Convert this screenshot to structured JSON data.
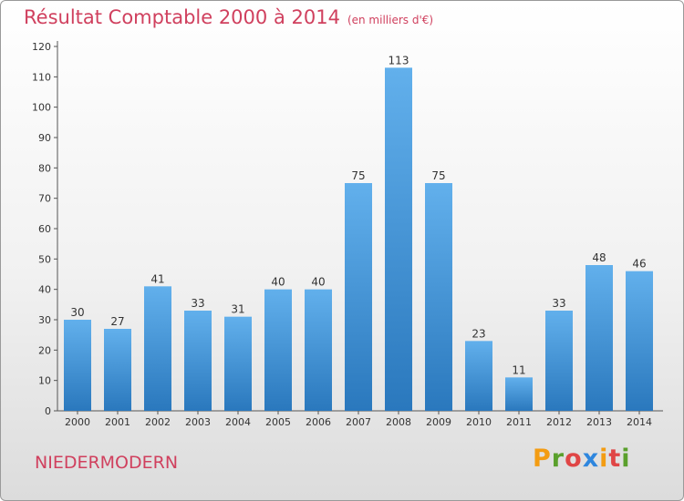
{
  "title": "Résultat Comptable 2000 à 2014",
  "unit": "(en milliers d'€)",
  "commune": "NIEDERMODERN",
  "logo": {
    "letters": [
      "P",
      "r",
      "o",
      "x",
      "i",
      "t",
      "i"
    ],
    "colors": [
      "#f39c12",
      "#5aa02c",
      "#e04646",
      "#2e86de",
      "#f39c12",
      "#e04646",
      "#5aa02c"
    ]
  },
  "colors": {
    "bar_top": "#62b0ec",
    "bar_bottom": "#2a78bd",
    "title": "#d0405e"
  },
  "chart_data": {
    "type": "bar",
    "categories": [
      "2000",
      "2001",
      "2002",
      "2003",
      "2004",
      "2005",
      "2006",
      "2007",
      "2008",
      "2009",
      "2010",
      "2011",
      "2012",
      "2013",
      "2014"
    ],
    "values": [
      30,
      27,
      41,
      33,
      31,
      40,
      40,
      75,
      113,
      75,
      23,
      11,
      33,
      48,
      46
    ],
    "title": "Résultat Comptable 2000 à 2014",
    "xlabel": "",
    "ylabel": "",
    "ylim": [
      0,
      120
    ],
    "yticks": [
      0,
      10,
      20,
      30,
      40,
      50,
      60,
      70,
      80,
      90,
      100,
      110,
      120
    ],
    "grid": false,
    "legend": "none"
  }
}
